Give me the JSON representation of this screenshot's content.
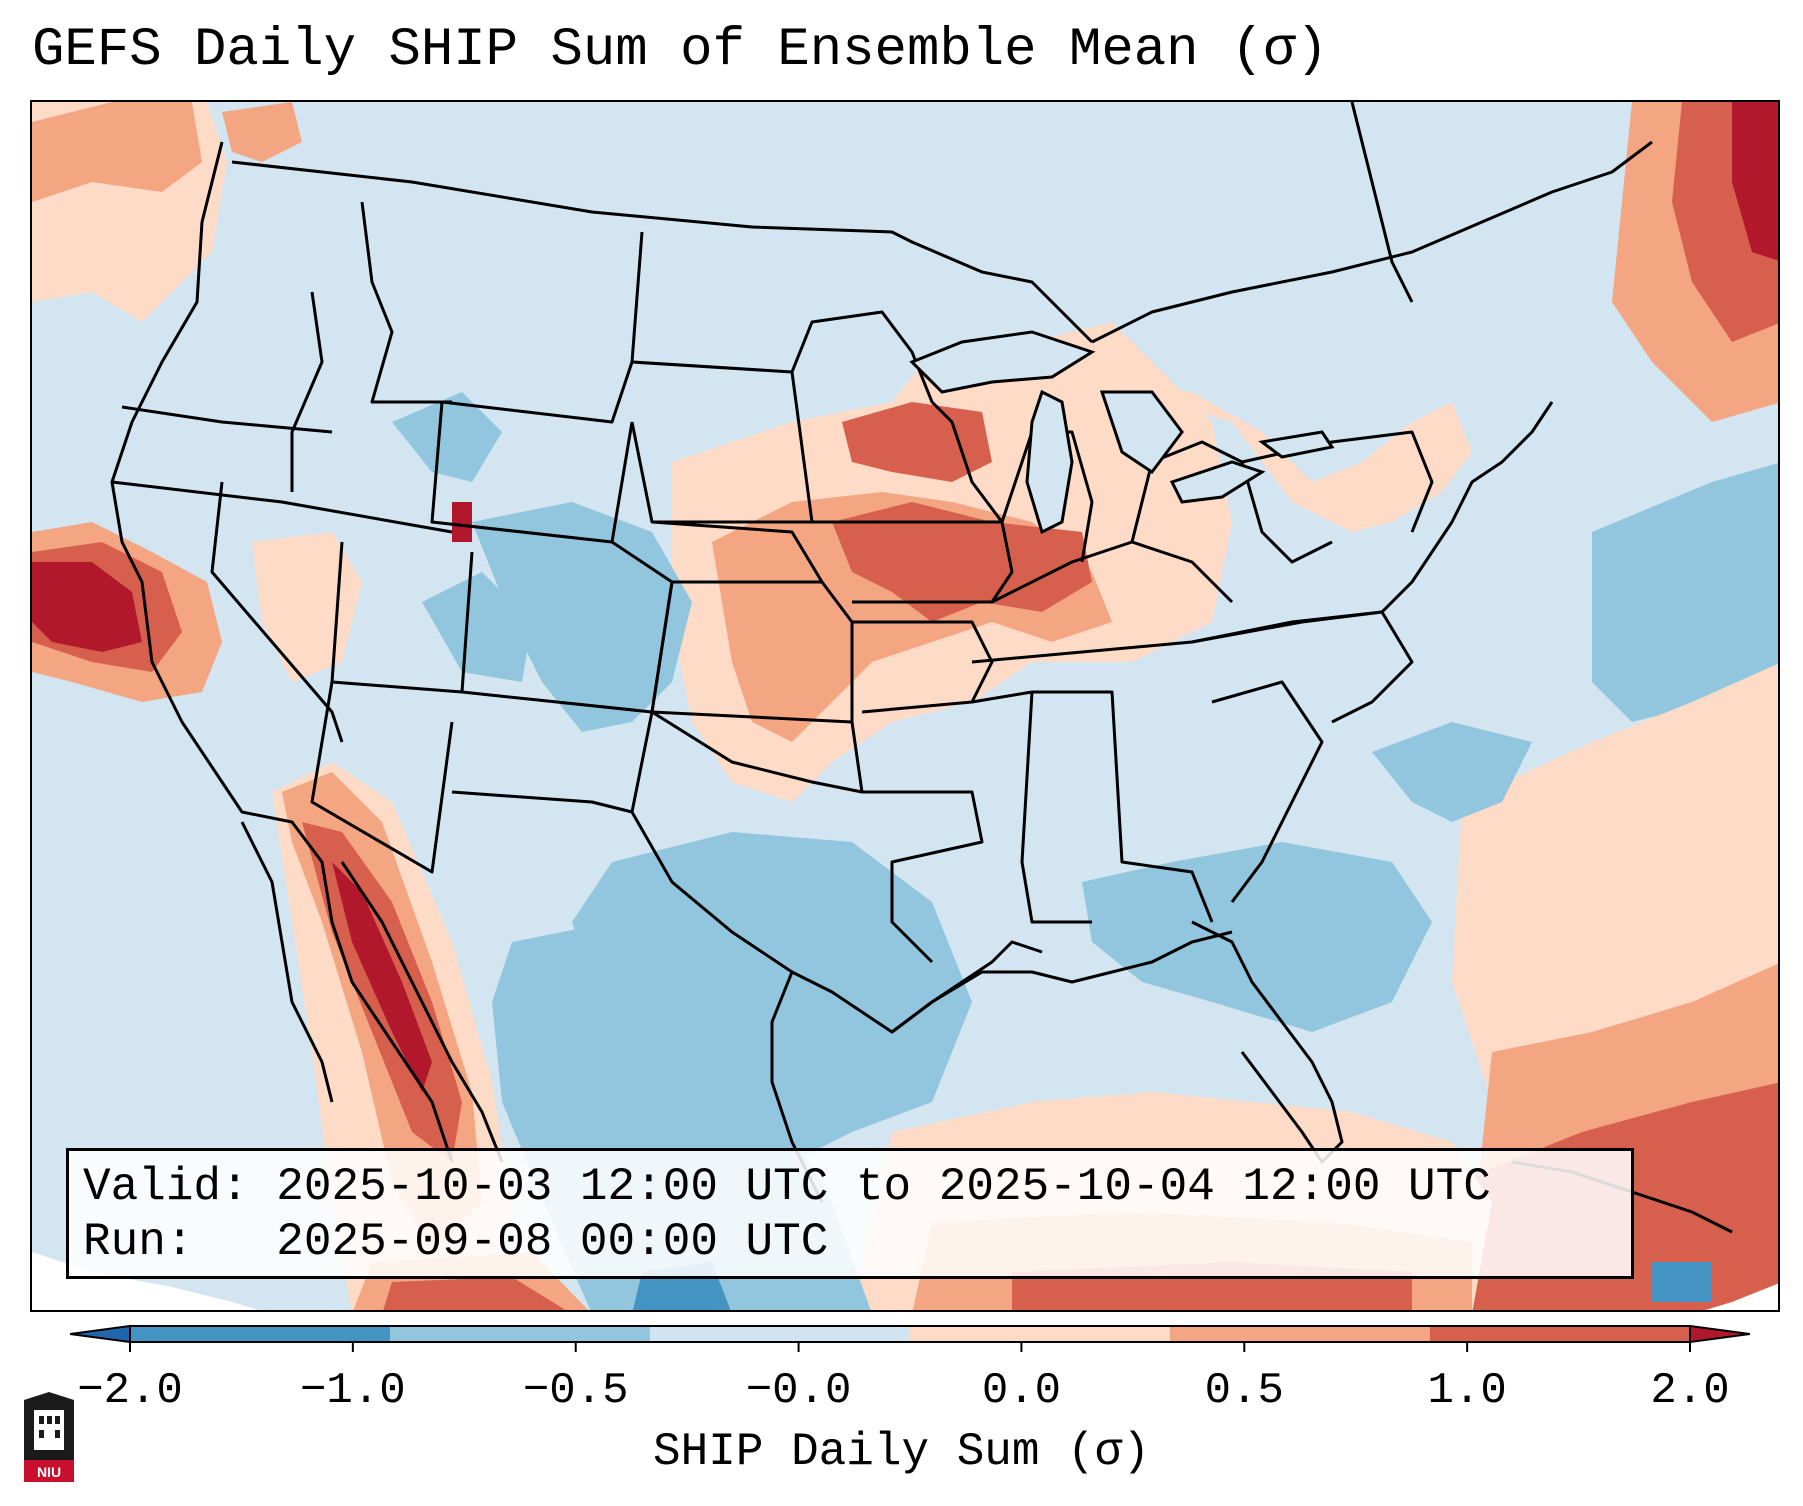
{
  "title": "GEFS Daily SHIP Sum of Ensemble Mean (σ)",
  "info": {
    "valid_label": "Valid:",
    "valid_value": "2025-10-03 12:00 UTC to 2025-10-04 12:00 UTC",
    "run_label": "Run:",
    "run_value": "2025-09-08 00:00 UTC"
  },
  "colorbar": {
    "label": "SHIP Daily Sum (σ)",
    "ticks": [
      "−2.0",
      "−1.0",
      "−0.5",
      "−0.0",
      "0.0",
      "0.5",
      "1.0",
      "2.0"
    ],
    "bins": [
      "#2166ac",
      "#4393c3",
      "#92c5de",
      "#d1e5f0",
      "#fddbc7",
      "#f4a582",
      "#d6604d",
      "#b2182b"
    ],
    "extend": "both"
  },
  "colors": {
    "below_-1": "#4393c3",
    "minus_1_to_minus_0_5": "#92c5de",
    "minus_0_5_to_0": "#d1e5f0",
    "zero_to_0_5": "#fddbc7",
    "half_to_1": "#f4a582",
    "one_to_2": "#d6604d",
    "above_2": "#b2182b"
  },
  "logo": {
    "text": "NIU",
    "name": "NIU logo"
  }
}
